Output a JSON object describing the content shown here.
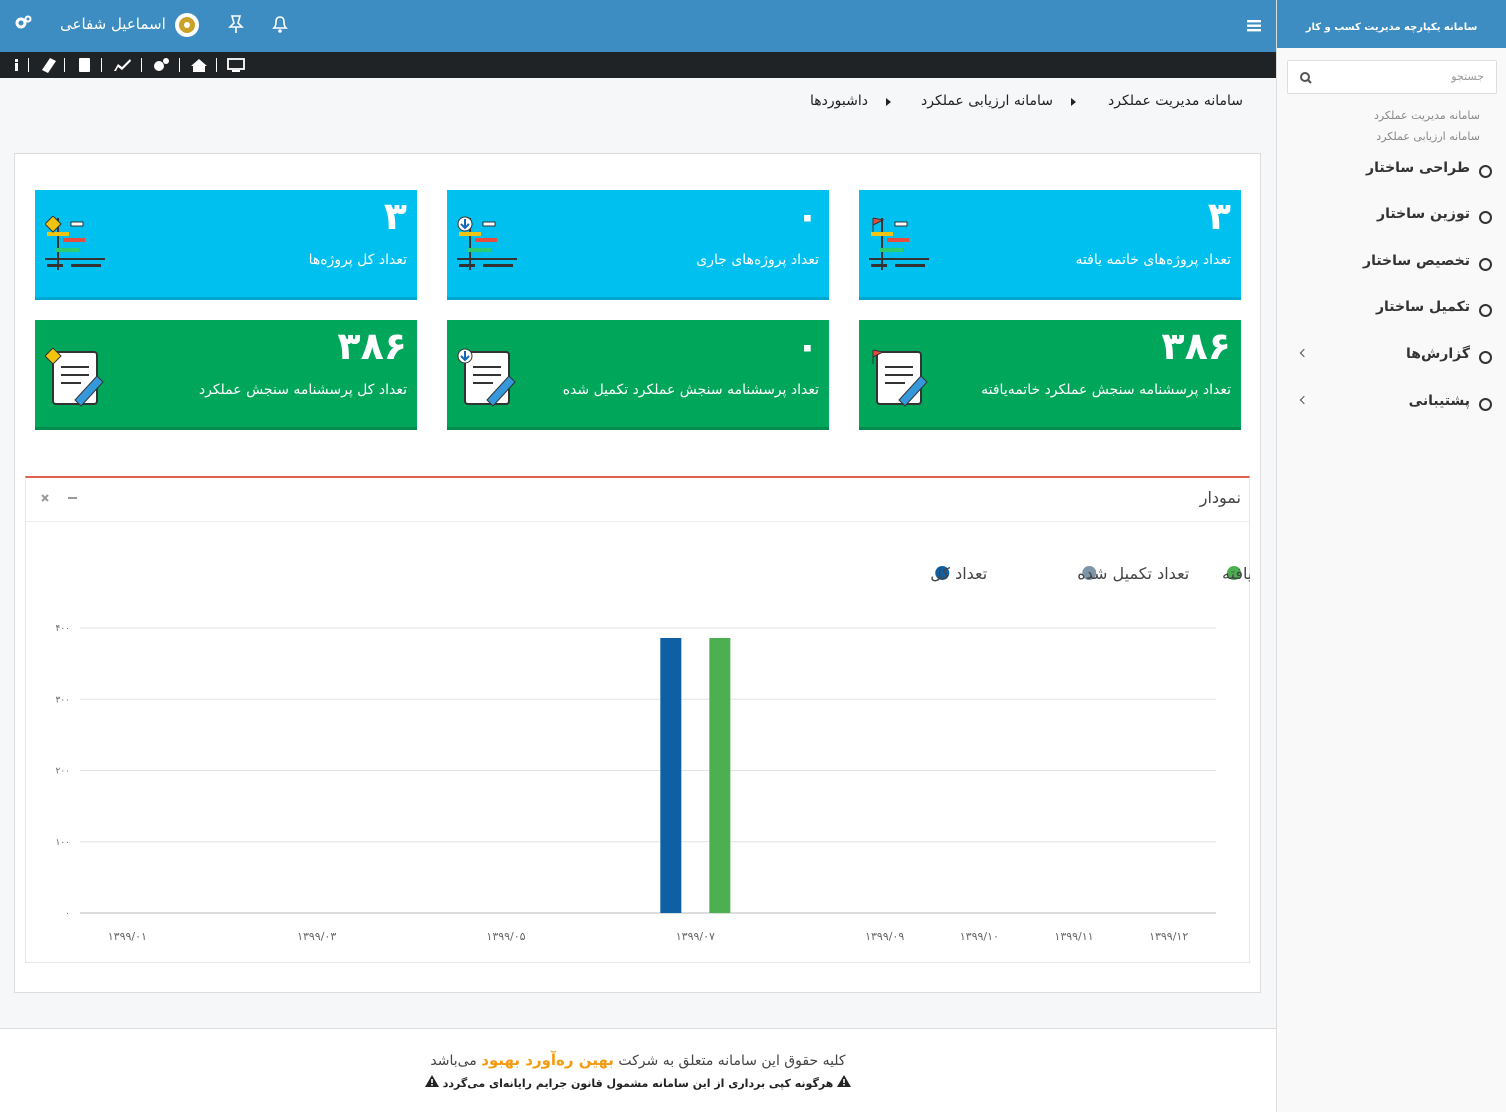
{
  "header": {
    "user_name": "اسماعیل شفاعی"
  },
  "sidebar": {
    "title": "سامانه یکپارچه مدیریت کسب و کار",
    "search_placeholder": "جستجو",
    "breadcrumb": [
      "سامانه مدیریت عملکرد",
      "سامانه ارزیابی عملکرد"
    ],
    "menu": [
      "طراحی ساختار",
      "توزین ساختار",
      "تخصیص ساختار",
      "تکمیل ساختار",
      "گزارش‌ها",
      "پشتیبانی"
    ]
  },
  "breadcrumb": [
    "سامانه مدیریت عملکرد",
    "سامانه ارزیابی عملکرد",
    "داشبوردها"
  ],
  "cards": [
    {
      "value": "۳",
      "label": "تعداد پروژه‌های خاتمه یافته"
    },
    {
      "value": "۰",
      "label": "تعداد پروژه‌های جاری"
    },
    {
      "value": "۳",
      "label": "تعداد کل پروژه‌ها"
    },
    {
      "value": "۳۸۶",
      "label": "تعداد پرسشنامه سنجش عملکرد خاتمه‌یافته"
    },
    {
      "value": "۰",
      "label": "تعداد پرسشنامه سنجش عملکرد تکمیل شده"
    },
    {
      "value": "۳۸۶",
      "label": "تعداد کل پرسشنامه سنجش عملکرد"
    }
  ],
  "chart_panel": {
    "title": "نمودار"
  },
  "chart_data": {
    "type": "bar",
    "legend": "top-right",
    "grid": true,
    "categories": [
      "۱۳۹۹/۰۱",
      null,
      "۱۳۹۹/۰۳",
      null,
      "۱۳۹۹/۰۵",
      null,
      "۱۳۹۹/۰۷",
      null,
      "۱۳۹۹/۰۹",
      "۱۳۹۹/۱۰",
      "۱۳۹۹/۱۱",
      "۱۳۹۹/۱۲"
    ],
    "series": [
      {
        "name": "تعداد کل",
        "color": "#0e5fa3",
        "values": [
          null,
          null,
          null,
          null,
          null,
          null,
          386,
          null,
          null,
          null,
          null,
          null
        ]
      },
      {
        "name": "تعداد تکمیل شده",
        "color": "#7d95a8",
        "values": [
          null,
          null,
          null,
          null,
          null,
          null,
          0,
          null,
          null,
          null,
          null,
          null
        ]
      },
      {
        "name": "تعداد خاتمه یافته",
        "color": "#4caf50",
        "values": [
          null,
          null,
          null,
          null,
          null,
          null,
          386,
          null,
          null,
          null,
          null,
          null
        ]
      }
    ],
    "ylim": [
      0,
      400
    ],
    "yticks": [
      {
        "value": 0,
        "label": "۰"
      },
      {
        "value": 100,
        "label": "۱۰۰"
      },
      {
        "value": 200,
        "label": "۲۰۰"
      },
      {
        "value": 300,
        "label": "۳۰۰"
      },
      {
        "value": 400,
        "label": "۴۰۰"
      }
    ]
  },
  "footer": {
    "text_before": "کلیه حقوق این سامانه متعلق به شرکت",
    "company": "بهین ره‌آورد بهبود",
    "text_after": "می‌باشد",
    "warning": "هرگونه کپی برداری از این سامانه مشمول قانون جرایم رایانه‌ای می‌گردد"
  }
}
